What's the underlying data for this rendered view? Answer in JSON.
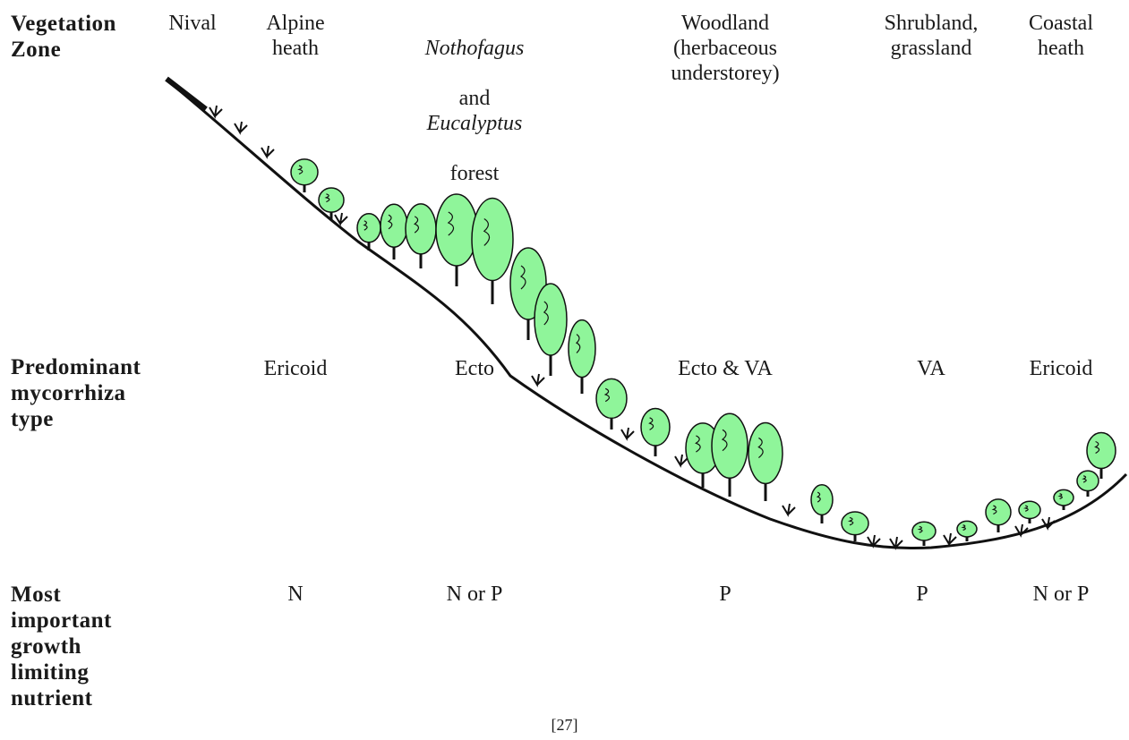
{
  "rows": {
    "vegetation": "Vegetation\nZone",
    "mycorrhiza": "Predominant\nmycorrhiza\ntype",
    "nutrient": "Most\nimportant\ngrowth\nlimiting\nnutrient"
  },
  "zones": [
    {
      "id": "nival",
      "name": "Nival"
    },
    {
      "id": "alpine",
      "name": "Alpine\nheath",
      "mycorrhiza": "Ericoid",
      "nutrient": "N"
    },
    {
      "id": "forest",
      "name_italic_1": "Nothofagus",
      "name_plain": "and",
      "name_italic_2": "Eucalyptus",
      "name_tail": "forest",
      "mycorrhiza": "Ecto",
      "nutrient": "N or P"
    },
    {
      "id": "woodland",
      "name": "Woodland\n(herbaceous\nunderstorey)",
      "mycorrhiza": "Ecto & VA",
      "nutrient": "P"
    },
    {
      "id": "shrubland",
      "name": "Shrubland,\ngrassland",
      "mycorrhiza": "VA",
      "nutrient": "P"
    },
    {
      "id": "coastal",
      "name": "Coastal\nheath",
      "mycorrhiza": "Ericoid",
      "nutrient": "N or P"
    }
  ],
  "caption": "[27]",
  "colors": {
    "tree_fill": "#8ff59a",
    "ink": "#111111"
  }
}
